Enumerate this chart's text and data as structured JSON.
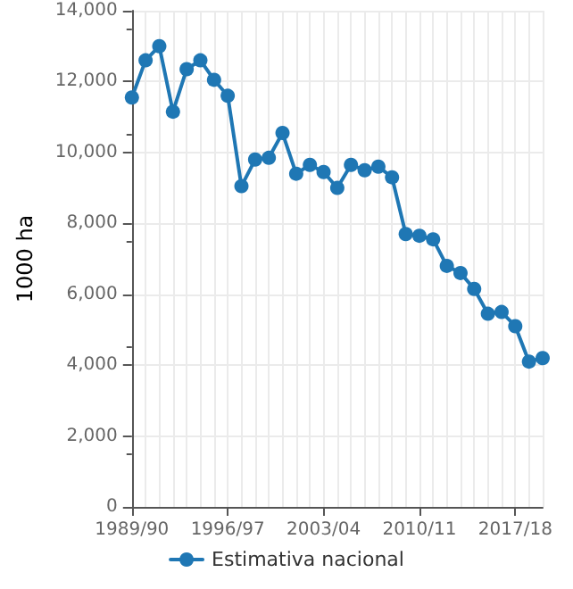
{
  "chart_data": {
    "type": "line",
    "ylabel": "1000 ha",
    "categories": [
      "1989/90",
      null,
      null,
      null,
      null,
      null,
      null,
      "1996/97",
      null,
      null,
      null,
      null,
      null,
      null,
      "2003/04",
      null,
      null,
      null,
      null,
      null,
      null,
      "2010/11",
      null,
      null,
      null,
      null,
      null,
      null,
      "2017/18",
      null,
      null
    ],
    "series": [
      {
        "name": "Estimativa nacional",
        "color": "#1f77b4",
        "values": [
          11550,
          12600,
          13000,
          11150,
          12350,
          12600,
          12050,
          11600,
          9050,
          9800,
          9850,
          10550,
          9400,
          9650,
          9450,
          9000,
          9650,
          9500,
          9600,
          9300,
          7700,
          7650,
          7550,
          6800,
          6600,
          6150,
          5450,
          5500,
          5100,
          4100,
          4200
        ]
      }
    ],
    "ylim": [
      0,
      14000
    ],
    "yticks": [
      0,
      {
        "value": 2000,
        "label": "2,000"
      },
      {
        "value": 4000,
        "label": "4,000"
      },
      {
        "value": 6000,
        "label": "6,000"
      },
      {
        "value": 8000,
        "label": "8,000"
      },
      {
        "value": 10000,
        "label": "10,000"
      },
      {
        "value": 12000,
        "label": "12,000"
      },
      {
        "value": 14000,
        "label": "14,000"
      }
    ],
    "grid": true,
    "legend": "bottom",
    "marker": "circle",
    "line_style": "solid"
  }
}
